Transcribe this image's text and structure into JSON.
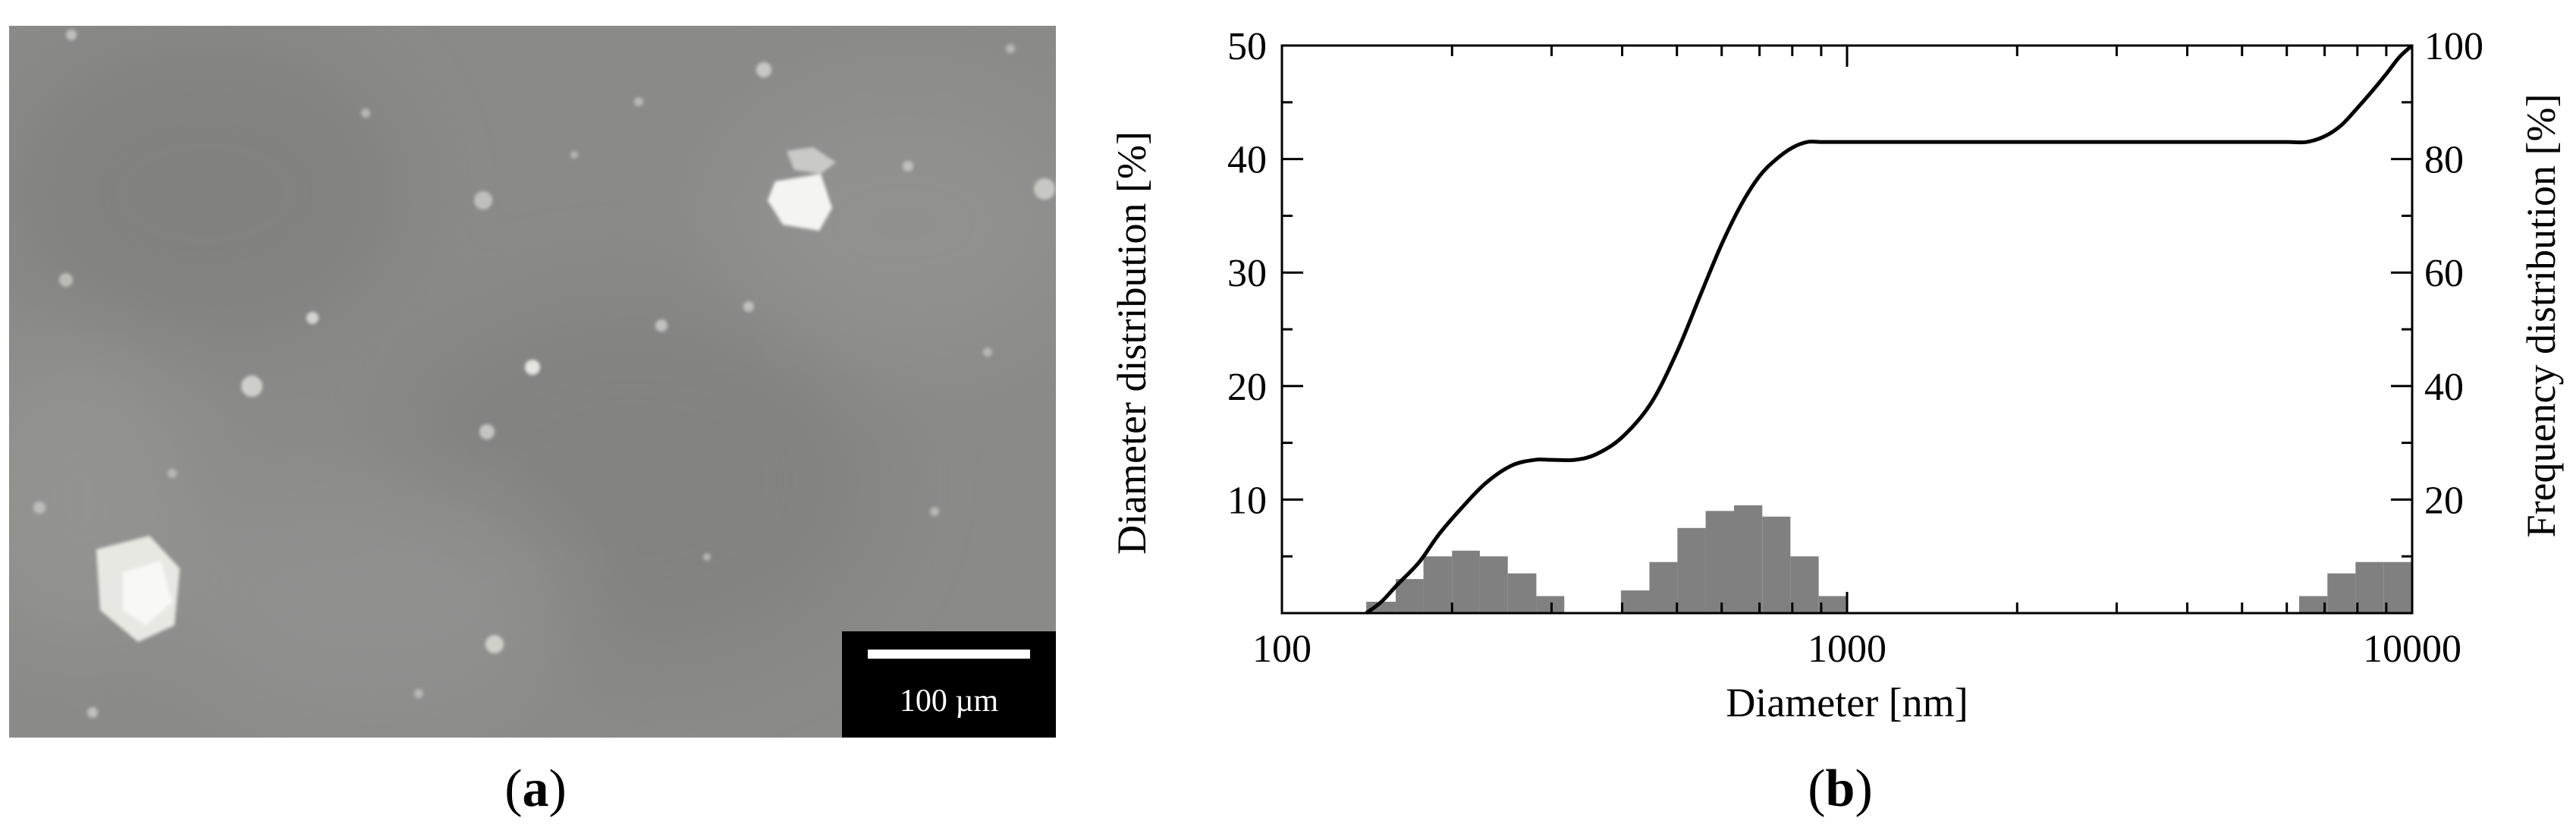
{
  "panels": {
    "a": {
      "label": "a"
    },
    "b": {
      "label": "b"
    }
  },
  "micrograph": {
    "scale_bar_label": "100 µm",
    "background_color": "#8a8a88"
  },
  "chart_data": {
    "type": "bar",
    "xlabel": "Diameter [nm]",
    "ylabel": "Diameter distribution [%]",
    "y2label": "Frequency distribution [%]",
    "x_scale": "log",
    "xlim": [
      100,
      10000
    ],
    "xticks": [
      100,
      1000,
      10000
    ],
    "ylim": [
      0,
      50
    ],
    "yticks": [
      10,
      20,
      30,
      40,
      50
    ],
    "y2lim": [
      0,
      100
    ],
    "y2ticks": [
      20,
      40,
      60,
      80,
      100
    ],
    "grid": false,
    "bar_color": "#808080",
    "line_color": "#000000",
    "bars": [
      {
        "x0": 141,
        "x1": 159,
        "value": 1.0
      },
      {
        "x0": 159,
        "x1": 178,
        "value": 3.0
      },
      {
        "x0": 178,
        "x1": 200,
        "value": 5.0
      },
      {
        "x0": 200,
        "x1": 224,
        "value": 5.5
      },
      {
        "x0": 224,
        "x1": 251,
        "value": 5.0
      },
      {
        "x0": 251,
        "x1": 282,
        "value": 3.5
      },
      {
        "x0": 282,
        "x1": 316,
        "value": 1.5
      },
      {
        "x0": 398,
        "x1": 447,
        "value": 2.0
      },
      {
        "x0": 447,
        "x1": 501,
        "value": 4.5
      },
      {
        "x0": 501,
        "x1": 562,
        "value": 7.5
      },
      {
        "x0": 562,
        "x1": 631,
        "value": 9.0
      },
      {
        "x0": 631,
        "x1": 708,
        "value": 9.5
      },
      {
        "x0": 708,
        "x1": 794,
        "value": 8.5
      },
      {
        "x0": 794,
        "x1": 891,
        "value": 5.0
      },
      {
        "x0": 891,
        "x1": 1000,
        "value": 1.5
      },
      {
        "x0": 6310,
        "x1": 7080,
        "value": 1.5
      },
      {
        "x0": 7080,
        "x1": 7940,
        "value": 3.5
      },
      {
        "x0": 7940,
        "x1": 8910,
        "value": 4.5
      },
      {
        "x0": 8910,
        "x1": 10000,
        "value": 4.5
      }
    ],
    "cumulative_line": {
      "name": "",
      "axis": "right",
      "x": [
        141,
        150,
        160,
        175,
        190,
        210,
        230,
        255,
        280,
        300,
        330,
        360,
        400,
        450,
        500,
        550,
        600,
        650,
        700,
        750,
        800,
        850,
        900,
        950,
        1000,
        1500,
        2000,
        3000,
        4000,
        5000,
        6000,
        6500,
        7000,
        7500,
        8000,
        8500,
        9000,
        9500,
        10000
      ],
      "y": [
        0,
        2,
        5,
        9,
        14,
        19,
        23,
        26,
        27,
        27,
        27,
        28,
        31,
        37,
        46,
        56,
        65,
        72,
        77,
        80,
        82,
        83,
        83,
        83,
        83,
        83,
        83,
        83,
        83,
        83,
        83,
        83,
        84,
        86,
        89,
        92,
        95,
        98,
        100
      ]
    }
  }
}
